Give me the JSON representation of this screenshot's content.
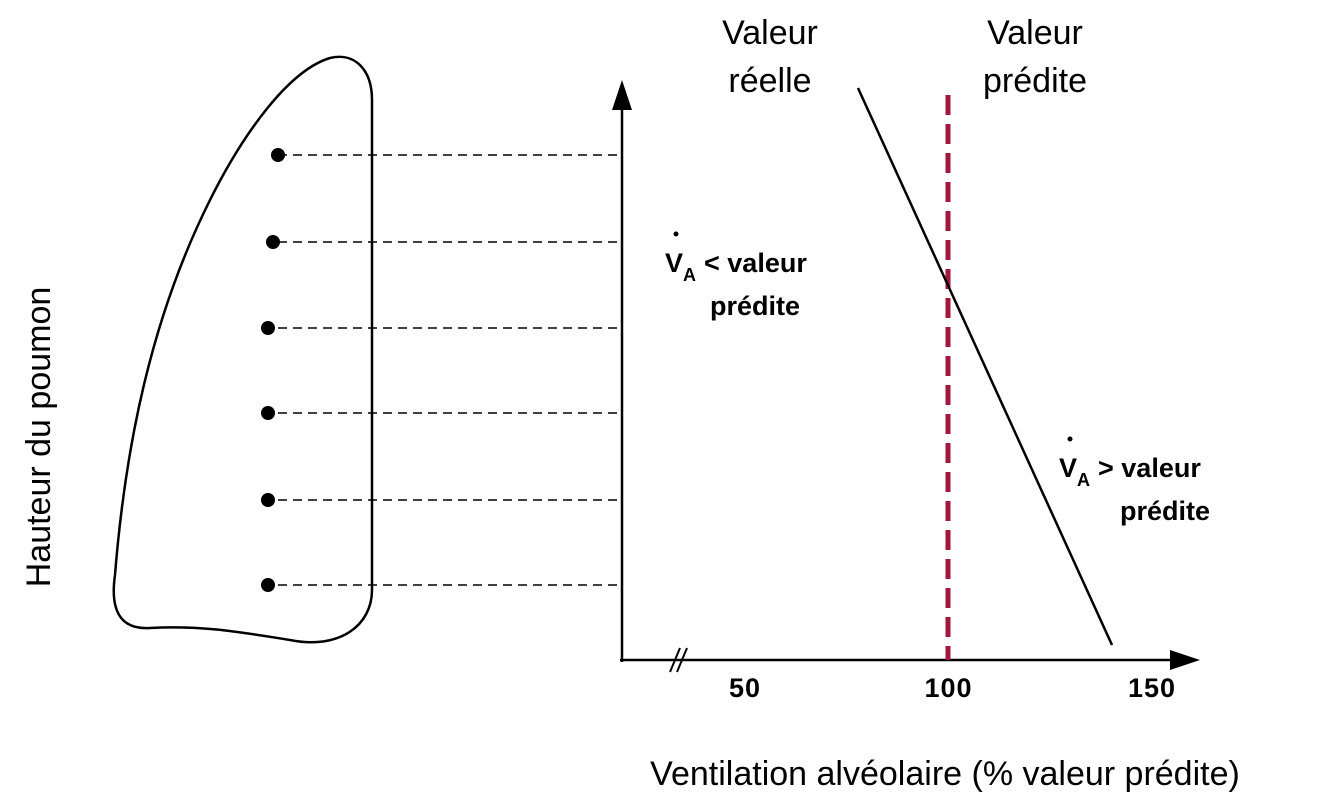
{
  "diagram": {
    "y_axis_label": "Hauteur du poumon",
    "x_axis_label": "Ventilation alvéolaire (% valeur prédite)",
    "x_ticks": [
      50,
      100,
      150
    ],
    "lines": [
      {
        "label": [
          "Valeur",
          "réelle"
        ]
      },
      {
        "label": [
          "Valeur",
          "prédite"
        ]
      }
    ],
    "regions": [
      {
        "symbol": "V",
        "subscript": "A",
        "text": "< valeur",
        "second_line": "prédite"
      },
      {
        "symbol": "V",
        "subscript": "A",
        "text": "> valeur",
        "second_line": "prédite"
      }
    ]
  }
}
